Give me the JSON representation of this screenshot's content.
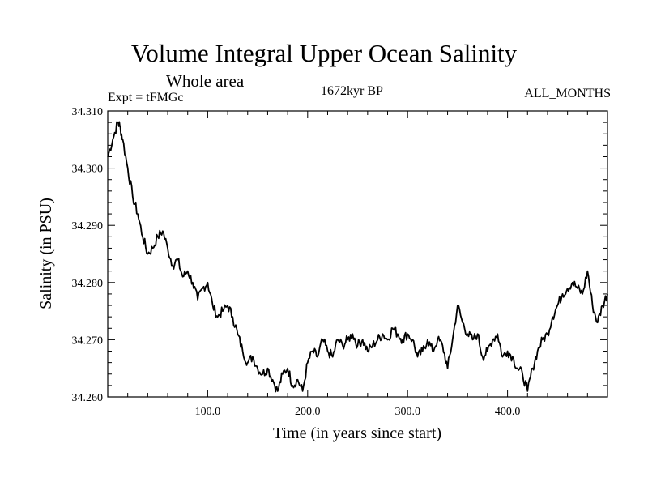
{
  "chart_data": {
    "type": "line",
    "title": "Volume Integral Upper Ocean Salinity",
    "subtitle": "Whole area",
    "header_left": "Expt = tFMGc",
    "header_center": "1672kyr BP",
    "header_right": "ALL_MONTHS",
    "xlabel": "Time (in years since start)",
    "ylabel": "Salinity (in PSU)",
    "xlim": [
      0,
      500
    ],
    "ylim": [
      34.26,
      34.31
    ],
    "xticks": [
      100,
      200,
      300,
      400
    ],
    "xtick_labels": [
      "100.0",
      "200.0",
      "300.0",
      "400.0"
    ],
    "yticks": [
      34.26,
      34.27,
      34.28,
      34.29,
      34.3,
      34.31
    ],
    "ytick_labels": [
      "34.260",
      "34.270",
      "34.280",
      "34.290",
      "34.300",
      "34.310"
    ],
    "series": [
      {
        "name": "Salinity",
        "color": "#000000",
        "x": [
          0,
          5,
          10,
          12,
          15,
          20,
          25,
          30,
          35,
          40,
          45,
          50,
          55,
          60,
          65,
          70,
          75,
          80,
          85,
          90,
          95,
          100,
          105,
          110,
          115,
          120,
          125,
          130,
          135,
          140,
          145,
          150,
          155,
          160,
          165,
          170,
          175,
          180,
          185,
          190,
          195,
          200,
          205,
          210,
          215,
          220,
          225,
          230,
          235,
          240,
          245,
          250,
          255,
          260,
          265,
          270,
          275,
          280,
          285,
          290,
          295,
          300,
          305,
          310,
          315,
          320,
          325,
          330,
          335,
          340,
          345,
          350,
          355,
          360,
          365,
          370,
          375,
          380,
          385,
          390,
          395,
          400,
          405,
          410,
          415,
          420,
          425,
          430,
          435,
          440,
          445,
          450,
          455,
          460,
          465,
          470,
          475,
          480,
          485,
          490,
          495,
          500
        ],
        "values": [
          34.302,
          34.305,
          34.308,
          34.3075,
          34.305,
          34.3,
          34.295,
          34.292,
          34.288,
          34.285,
          34.286,
          34.288,
          34.289,
          34.286,
          34.283,
          34.284,
          34.281,
          34.282,
          34.28,
          34.277,
          34.279,
          34.28,
          34.276,
          34.274,
          34.275,
          34.276,
          34.274,
          34.271,
          34.268,
          34.266,
          34.267,
          34.265,
          34.264,
          34.265,
          34.263,
          34.261,
          34.264,
          34.265,
          34.262,
          34.263,
          34.261,
          34.266,
          34.268,
          34.267,
          34.27,
          34.268,
          34.267,
          34.27,
          34.269,
          34.27,
          34.271,
          34.269,
          34.27,
          34.268,
          34.269,
          34.27,
          34.271,
          34.27,
          34.272,
          34.271,
          34.27,
          34.271,
          34.27,
          34.267,
          34.268,
          34.27,
          34.268,
          34.27,
          34.269,
          34.265,
          34.27,
          34.276,
          34.273,
          34.271,
          34.27,
          34.271,
          34.267,
          34.268,
          34.27,
          34.271,
          34.267,
          34.268,
          34.267,
          34.265,
          34.264,
          34.261,
          34.265,
          34.268,
          34.27,
          34.271,
          34.274,
          34.276,
          34.278,
          34.279,
          34.28,
          34.279,
          34.278,
          34.282,
          34.276,
          34.273,
          34.276,
          34.278
        ]
      }
    ]
  }
}
